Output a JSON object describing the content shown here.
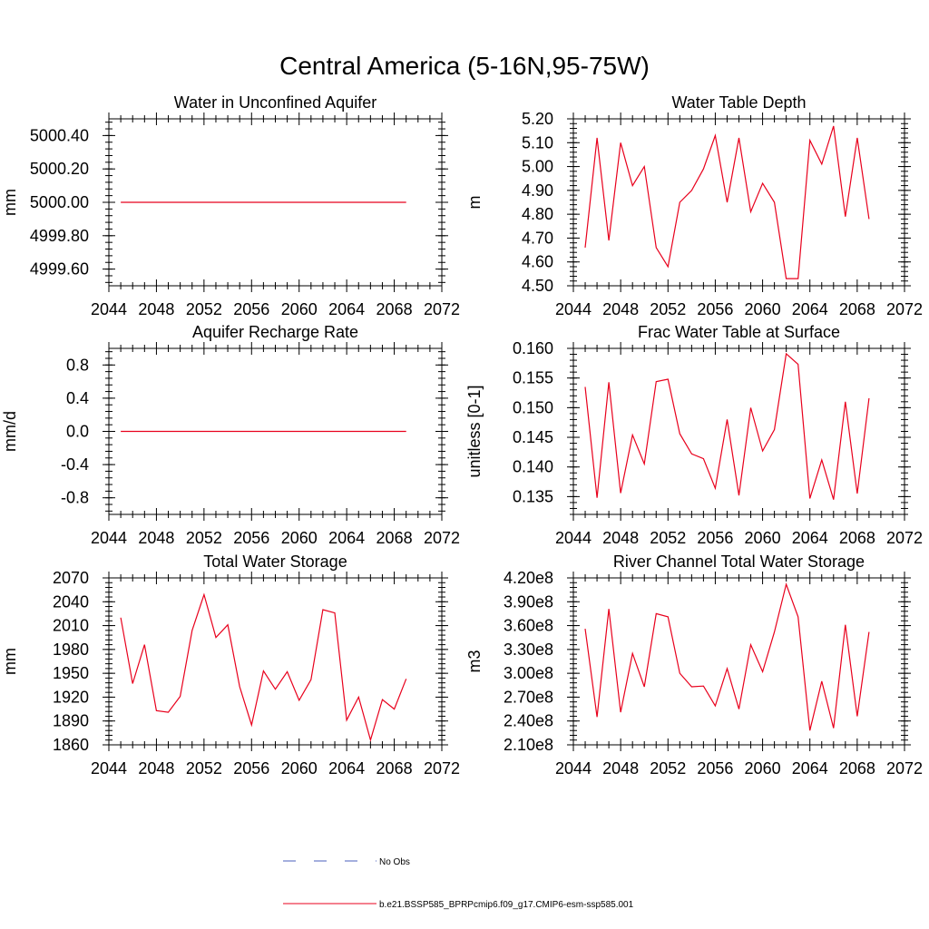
{
  "figure": {
    "title": "Central America (5-16N,95-75W)"
  },
  "colors": {
    "model": "#e8001c",
    "obs": "#4a5fbd",
    "axis": "#000000"
  },
  "chart_data": [
    {
      "type": "line",
      "title": "Water in Unconfined Aquifer",
      "ylabel": "mm",
      "xlim": [
        2044,
        2072
      ],
      "ylim": [
        4999.5,
        5000.5
      ],
      "xticks": [
        "2044",
        "2048",
        "2052",
        "2056",
        "2060",
        "2064",
        "2068",
        "2072"
      ],
      "yticks": [
        "4999.60",
        "4999.80",
        "5000.00",
        "5000.20",
        "5000.40"
      ],
      "series": [
        {
          "name": "b.e21.BSSP585_BPRPcmip6.f09_g17.CMIP6-esm-ssp585.001",
          "x": [
            2045,
            2046,
            2047,
            2048,
            2049,
            2050,
            2051,
            2052,
            2053,
            2054,
            2055,
            2056,
            2057,
            2058,
            2059,
            2060,
            2061,
            2062,
            2063,
            2064,
            2065,
            2066,
            2067,
            2068,
            2069
          ],
          "values": [
            5000,
            5000,
            5000,
            5000,
            5000,
            5000,
            5000,
            5000,
            5000,
            5000,
            5000,
            5000,
            5000,
            5000,
            5000,
            5000,
            5000,
            5000,
            5000,
            5000,
            5000,
            5000,
            5000,
            5000,
            5000
          ]
        }
      ]
    },
    {
      "type": "line",
      "title": "Water Table Depth",
      "ylabel": "m",
      "xlim": [
        2044,
        2072
      ],
      "ylim": [
        4.5,
        5.2
      ],
      "xticks": [
        "2044",
        "2048",
        "2052",
        "2056",
        "2060",
        "2064",
        "2068",
        "2072"
      ],
      "yticks": [
        "4.50",
        "4.60",
        "4.70",
        "4.80",
        "4.90",
        "5.00",
        "5.10",
        "5.20"
      ],
      "series": [
        {
          "name": "b.e21.BSSP585_BPRPcmip6.f09_g17.CMIP6-esm-ssp585.001",
          "x": [
            2045,
            2046,
            2047,
            2048,
            2049,
            2050,
            2051,
            2052,
            2053,
            2054,
            2055,
            2056,
            2057,
            2058,
            2059,
            2060,
            2061,
            2062,
            2063,
            2064,
            2065,
            2066,
            2067,
            2068,
            2069
          ],
          "values": [
            4.66,
            5.12,
            4.69,
            5.1,
            4.92,
            5.0,
            4.66,
            4.58,
            4.85,
            4.9,
            4.99,
            5.13,
            4.85,
            5.12,
            4.81,
            4.93,
            4.85,
            4.53,
            4.53,
            5.11,
            5.01,
            5.17,
            4.79,
            5.12,
            4.78
          ]
        }
      ]
    },
    {
      "type": "line",
      "title": "Aquifer Recharge Rate",
      "ylabel": "mm/d",
      "xlim": [
        2044,
        2072
      ],
      "ylim": [
        -1.0,
        1.0
      ],
      "xticks": [
        "2044",
        "2048",
        "2052",
        "2056",
        "2060",
        "2064",
        "2068",
        "2072"
      ],
      "yticks": [
        "-0.8",
        "-0.4",
        "0.0",
        "0.4",
        "0.8"
      ],
      "series": [
        {
          "name": "b.e21.BSSP585_BPRPcmip6.f09_g17.CMIP6-esm-ssp585.001",
          "x": [
            2045,
            2046,
            2047,
            2048,
            2049,
            2050,
            2051,
            2052,
            2053,
            2054,
            2055,
            2056,
            2057,
            2058,
            2059,
            2060,
            2061,
            2062,
            2063,
            2064,
            2065,
            2066,
            2067,
            2068,
            2069
          ],
          "values": [
            0,
            0,
            0,
            0,
            0,
            0,
            0,
            0,
            0,
            0,
            0,
            0,
            0,
            0,
            0,
            0,
            0,
            0,
            0,
            0,
            0,
            0,
            0,
            0,
            0
          ]
        }
      ]
    },
    {
      "type": "line",
      "title": "Frac Water Table at Surface",
      "ylabel": "unitless [0-1]",
      "xlim": [
        2044,
        2072
      ],
      "ylim": [
        0.132,
        0.16
      ],
      "xticks": [
        "2044",
        "2048",
        "2052",
        "2056",
        "2060",
        "2064",
        "2068",
        "2072"
      ],
      "yticks": [
        "0.135",
        "0.140",
        "0.145",
        "0.150",
        "0.155",
        "0.160"
      ],
      "series": [
        {
          "name": "b.e21.BSSP585_BPRPcmip6.f09_g17.CMIP6-esm-ssp585.001",
          "x": [
            2045,
            2046,
            2047,
            2048,
            2049,
            2050,
            2051,
            2052,
            2053,
            2054,
            2055,
            2056,
            2057,
            2058,
            2059,
            2060,
            2061,
            2062,
            2063,
            2064,
            2065,
            2066,
            2067,
            2068,
            2069
          ],
          "values": [
            0.1535,
            0.1348,
            0.1543,
            0.1356,
            0.1454,
            0.1405,
            0.1544,
            0.1548,
            0.1456,
            0.1422,
            0.1414,
            0.1364,
            0.148,
            0.1352,
            0.15,
            0.1427,
            0.1463,
            0.1591,
            0.1573,
            0.1347,
            0.1412,
            0.1345,
            0.151,
            0.1355,
            0.1516
          ]
        }
      ]
    },
    {
      "type": "line",
      "title": "Total Water Storage",
      "ylabel": "mm",
      "xlim": [
        2044,
        2072
      ],
      "ylim": [
        1860,
        2070
      ],
      "xticks": [
        "2044",
        "2048",
        "2052",
        "2056",
        "2060",
        "2064",
        "2068",
        "2072"
      ],
      "yticks": [
        "1860",
        "1890",
        "1920",
        "1950",
        "1980",
        "2010",
        "2040",
        "2070"
      ],
      "series": [
        {
          "name": "b.e21.BSSP585_BPRPcmip6.f09_g17.CMIP6-esm-ssp585.001",
          "x": [
            2045,
            2046,
            2047,
            2048,
            2049,
            2050,
            2051,
            2052,
            2053,
            2054,
            2055,
            2056,
            2057,
            2058,
            2059,
            2060,
            2061,
            2062,
            2063,
            2064,
            2065,
            2066,
            2067,
            2068,
            2069
          ],
          "values": [
            2020,
            1937,
            1986,
            1903,
            1901,
            1921,
            2004,
            2049,
            1995,
            2011,
            1933,
            1885,
            1953,
            1930,
            1952,
            1916,
            1942,
            2030,
            2026,
            1891,
            1920,
            1866,
            1917,
            1905,
            1943
          ]
        }
      ]
    },
    {
      "type": "line",
      "title": "River Channel Total Water Storage",
      "ylabel": "m3",
      "xlim": [
        2044,
        2072
      ],
      "ylim": [
        210000000.0,
        420000000.0
      ],
      "xticks": [
        "2044",
        "2048",
        "2052",
        "2056",
        "2060",
        "2064",
        "2068",
        "2072"
      ],
      "yticks": [
        "2.10e8",
        "2.40e8",
        "2.70e8",
        "3.00e8",
        "3.30e8",
        "3.60e8",
        "3.90e8",
        "4.20e8"
      ],
      "series": [
        {
          "name": "b.e21.BSSP585_BPRPcmip6.f09_g17.CMIP6-esm-ssp585.001",
          "x": [
            2045,
            2046,
            2047,
            2048,
            2049,
            2050,
            2051,
            2052,
            2053,
            2054,
            2055,
            2056,
            2057,
            2058,
            2059,
            2060,
            2061,
            2062,
            2063,
            2064,
            2065,
            2066,
            2067,
            2068,
            2069
          ],
          "values": [
            356000000.0,
            245000000.0,
            381000000.0,
            251000000.0,
            325000000.0,
            283000000.0,
            375000000.0,
            371000000.0,
            300000000.0,
            283000000.0,
            284000000.0,
            259000000.0,
            306000000.0,
            255000000.0,
            336000000.0,
            302000000.0,
            352000000.0,
            412000000.0,
            371000000.0,
            228000000.0,
            290000000.0,
            231000000.0,
            361000000.0,
            246000000.0,
            352000000.0
          ]
        }
      ]
    }
  ],
  "legend": {
    "position": "bottom-center",
    "items": [
      {
        "label": "No Obs",
        "style": "dashed"
      },
      {
        "label": "b.e21.BSSP585_BPRPcmip6.f09_g17.CMIP6-esm-ssp585.001",
        "style": "solid"
      }
    ]
  }
}
